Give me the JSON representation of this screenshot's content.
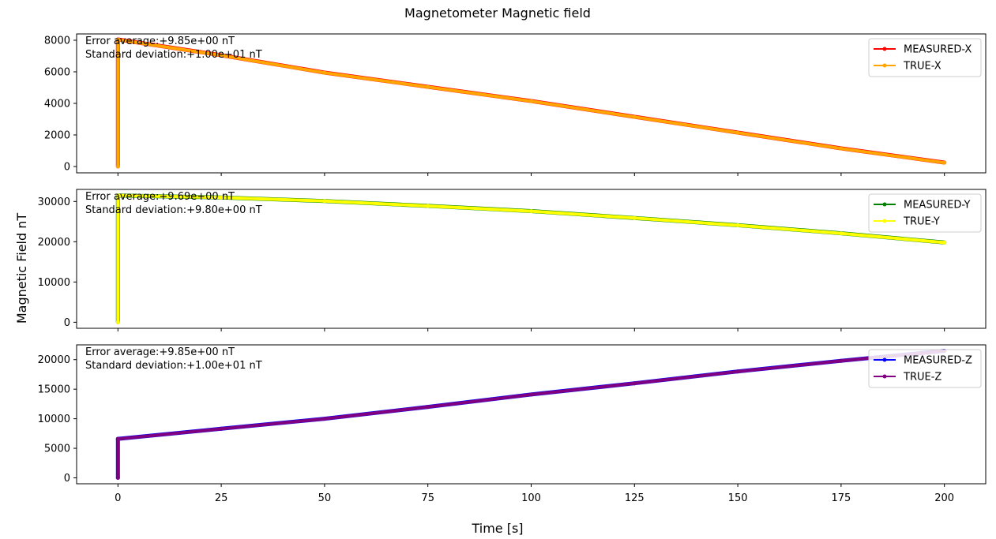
{
  "figure": {
    "title": "Magnetometer Magnetic field",
    "xlabel": "Time [s]",
    "ylabel": "Magnetic Field nT"
  },
  "chart_data": [
    {
      "type": "line",
      "xlim": [
        -10,
        210
      ],
      "ylim": [
        -400,
        8400
      ],
      "xticks": [
        0,
        25,
        50,
        75,
        100,
        125,
        150,
        175,
        200
      ],
      "yticks": [
        0,
        2000,
        4000,
        6000,
        8000
      ],
      "annotations": [
        "Error average:+9.85e+00 nT",
        "Standard deviation:+1.00e+01 nT"
      ],
      "legend_position": "top-right",
      "series": [
        {
          "name": "MEASURED-X",
          "color": "#ff0000",
          "x": [
            0,
            0,
            25,
            50,
            75,
            100,
            125,
            150,
            175,
            200
          ],
          "y": [
            0,
            8050,
            7050,
            5950,
            5050,
            4150,
            3150,
            2150,
            1150,
            250
          ]
        },
        {
          "name": "TRUE-X",
          "color": "#ffa500",
          "x": [
            0,
            0,
            25,
            50,
            75,
            100,
            125,
            150,
            175,
            200
          ],
          "y": [
            0,
            8040,
            7040,
            5940,
            5040,
            4140,
            3140,
            2140,
            1140,
            240
          ]
        }
      ]
    },
    {
      "type": "line",
      "xlim": [
        -10,
        210
      ],
      "ylim": [
        -1500,
        33000
      ],
      "xticks": [
        0,
        25,
        50,
        75,
        100,
        125,
        150,
        175,
        200
      ],
      "yticks": [
        0,
        10000,
        20000,
        30000
      ],
      "annotations": [
        "Error average:+9.69e+00 nT",
        "Standard deviation:+9.80e+00 nT"
      ],
      "legend_position": "top-right",
      "series": [
        {
          "name": "MEASURED-Y",
          "color": "#008000",
          "x": [
            0,
            0,
            25,
            50,
            75,
            100,
            125,
            150,
            175,
            200
          ],
          "y": [
            0,
            31500,
            31000,
            30100,
            28900,
            27600,
            25900,
            24100,
            22100,
            19800
          ]
        },
        {
          "name": "TRUE-Y",
          "color": "#ffff00",
          "x": [
            0,
            0,
            25,
            50,
            75,
            100,
            125,
            150,
            175,
            200
          ],
          "y": [
            0,
            31490,
            30990,
            30090,
            28890,
            27590,
            25890,
            24090,
            22090,
            19790
          ]
        }
      ]
    },
    {
      "type": "line",
      "xlim": [
        -10,
        210
      ],
      "ylim": [
        -1000,
        22500
      ],
      "xticks": [
        0,
        25,
        50,
        75,
        100,
        125,
        150,
        175,
        200
      ],
      "yticks": [
        0,
        5000,
        10000,
        15000,
        20000
      ],
      "annotations": [
        "Error average:+9.85e+00 nT",
        "Standard deviation:+1.00e+01 nT"
      ],
      "legend_position": "top-right",
      "series": [
        {
          "name": "MEASURED-Z",
          "color": "#0000ff",
          "x": [
            0,
            0,
            25,
            50,
            75,
            100,
            125,
            150,
            175,
            200
          ],
          "y": [
            0,
            6600,
            8300,
            10000,
            12000,
            14100,
            16000,
            18000,
            19800,
            21500
          ]
        },
        {
          "name": "TRUE-Z",
          "color": "#800080",
          "x": [
            0,
            0,
            25,
            50,
            75,
            100,
            125,
            150,
            175,
            200
          ],
          "y": [
            0,
            6590,
            8290,
            9990,
            11990,
            14090,
            15990,
            17990,
            19790,
            21490
          ]
        }
      ]
    }
  ]
}
